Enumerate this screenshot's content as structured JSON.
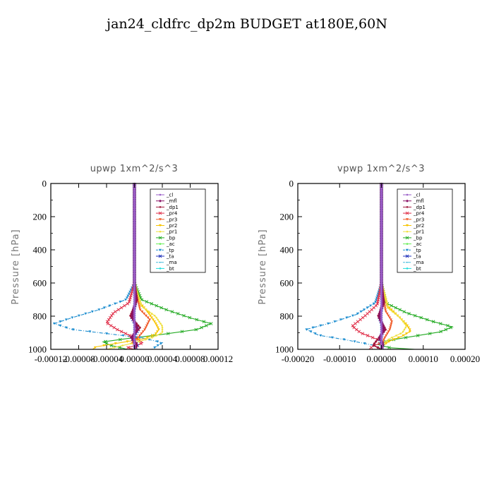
{
  "figure": {
    "title": "jan24_cldfrc_dp2m  BUDGET at180E,60N"
  },
  "colors": {
    "_cl": "#9a5fc8",
    "_mfl": "#8a1466",
    "_dp1": "#a0183c",
    "_pr4": "#e0304a",
    "_pr3": "#f05a28",
    "_pr2": "#f8c400",
    "_pr1": "#f0e040",
    "_bp": "#22aa22",
    "_ac": "#66ee55",
    "_tp": "#1e8ed0",
    "_ta": "#2233bb",
    "_ma": "#44bbdd",
    "_bt": "#22dddd"
  },
  "chart_data": [
    {
      "type": "line",
      "title": "upwp   1xm^2/s^3",
      "ylabel": "Pressure [hPa]",
      "xlabel": "",
      "xlim": [
        -0.00012,
        0.00012
      ],
      "ylim": [
        1000,
        0
      ],
      "xtick_labels": [
        "-0.00012",
        "-0.00008",
        "-0.00004",
        "0.00000",
        "0.00004",
        "0.00008",
        "0.00012"
      ],
      "xtick_values": [
        -0.00012,
        -8e-05,
        -4e-05,
        0.0,
        4e-05,
        8e-05,
        0.00012
      ],
      "ytick_values": [
        0,
        200,
        400,
        600,
        800,
        1000
      ],
      "ytick_labels": [
        "0",
        "200",
        "400",
        "600",
        "800",
        "1000"
      ],
      "legend": [
        "_cl",
        "_mfl",
        "_dp1",
        "_pr4",
        "_pr3",
        "_pr2",
        "_pr1",
        "_bp",
        "_ac",
        "_tp",
        "_ta",
        "_ma",
        "_bt"
      ],
      "legend_position": "top-right",
      "series": [
        {
          "name": "_cl",
          "x": [
            0,
            0,
            0,
            0,
            0,
            0,
            0,
            0
          ],
          "y": [
            0,
            300,
            600,
            700,
            800,
            900,
            950,
            1000
          ]
        },
        {
          "name": "_mfl",
          "x": [
            0,
            0,
            0,
            2e-06,
            -3e-06,
            4e-06,
            -4e-06,
            3e-06,
            0
          ],
          "y": [
            0,
            300,
            600,
            700,
            800,
            880,
            930,
            970,
            1000
          ]
        },
        {
          "name": "_dp1",
          "x": [
            0,
            0,
            0,
            4e-06,
            -6e-06,
            8e-06,
            -5e-06,
            4e-06,
            0
          ],
          "y": [
            0,
            300,
            600,
            700,
            800,
            870,
            930,
            970,
            1000
          ]
        },
        {
          "name": "_pr4",
          "x": [
            0,
            0,
            -8e-06,
            -3e-05,
            -4e-05,
            -2.5e-05,
            -5e-06,
            5e-06,
            1.2e-05,
            4e-06,
            -1e-05,
            0
          ],
          "y": [
            0,
            600,
            720,
            780,
            840,
            880,
            920,
            940,
            960,
            975,
            990,
            1000
          ]
        },
        {
          "name": "_pr3",
          "x": [
            0,
            0,
            8e-06,
            2.2e-05,
            1.5e-05,
            5e-06,
            -4e-06,
            4e-06,
            0
          ],
          "y": [
            0,
            600,
            760,
            820,
            880,
            930,
            960,
            985,
            1000
          ]
        },
        {
          "name": "_pr2",
          "x": [
            0,
            0,
            8e-06,
            2e-05,
            3e-05,
            3.5e-05,
            3e-05,
            1.5e-05,
            -2e-05,
            -5.5e-05,
            -6e-05
          ],
          "y": [
            0,
            600,
            720,
            780,
            840,
            880,
            910,
            935,
            960,
            985,
            1000
          ]
        },
        {
          "name": "_pr1",
          "x": [
            0,
            0,
            1e-05,
            3e-05,
            4e-05,
            4e-05,
            2.5e-05,
            5e-06,
            -2e-05,
            -4e-05
          ],
          "y": [
            0,
            600,
            740,
            800,
            860,
            900,
            930,
            955,
            980,
            1000
          ]
        },
        {
          "name": "_bp",
          "x": [
            0,
            0,
            1e-05,
            4.5e-05,
            8e-05,
            0.00011,
            9e-05,
            4e-05,
            -1e-05,
            -4.5e-05,
            -3.5e-05,
            -1e-05
          ],
          "y": [
            0,
            600,
            700,
            760,
            810,
            845,
            880,
            910,
            935,
            955,
            975,
            1000
          ]
        },
        {
          "name": "_ac",
          "x": [
            0,
            0,
            0,
            0,
            0,
            0
          ],
          "y": [
            0,
            400,
            700,
            850,
            950,
            1000
          ]
        },
        {
          "name": "_tp",
          "x": [
            0,
            0,
            -1.2e-05,
            -5e-05,
            -9e-05,
            -0.000115,
            -9e-05,
            -4e-05,
            1e-05,
            4e-05,
            2.5e-05
          ],
          "y": [
            0,
            600,
            700,
            760,
            810,
            845,
            880,
            905,
            930,
            960,
            1000
          ]
        },
        {
          "name": "_ta",
          "x": [
            0,
            0,
            2e-06,
            -4e-06,
            6e-06,
            -3e-06,
            5e-06,
            0
          ],
          "y": [
            0,
            600,
            720,
            810,
            880,
            940,
            975,
            1000
          ]
        },
        {
          "name": "_ma",
          "x": [
            0,
            0,
            0,
            0,
            0,
            0
          ],
          "y": [
            0,
            400,
            700,
            850,
            950,
            1000
          ]
        },
        {
          "name": "_bt",
          "x": [
            0,
            0,
            0,
            0,
            0,
            0
          ],
          "y": [
            0,
            400,
            700,
            850,
            950,
            1000
          ]
        }
      ]
    },
    {
      "type": "line",
      "title": "vpwp   1xm^2/s^3",
      "ylabel": "Pressure [hPa]",
      "xlabel": "",
      "xlim": [
        -0.0002,
        0.0002
      ],
      "ylim": [
        1000,
        0
      ],
      "xtick_labels": [
        "-0.00020",
        "-0.00010",
        "0.00000",
        "0.00010",
        "0.00020"
      ],
      "xtick_values": [
        -0.0002,
        -0.0001,
        0.0,
        0.0001,
        0.0002
      ],
      "ytick_values": [
        0,
        200,
        400,
        600,
        800,
        1000
      ],
      "ytick_labels": [
        "0",
        "200",
        "400",
        "600",
        "800",
        "1000"
      ],
      "legend": [
        "_cl",
        "_mfl",
        "_dp1",
        "_pr4",
        "_pr3",
        "_pr2",
        "_pr1",
        "_bp",
        "_ac",
        "_tp",
        "_ta",
        "_ma",
        "_bt"
      ],
      "legend_position": "top-right",
      "series": [
        {
          "name": "_cl",
          "x": [
            0,
            0,
            0,
            0,
            0,
            0,
            0,
            0
          ],
          "y": [
            0,
            300,
            600,
            700,
            800,
            900,
            950,
            1000
          ]
        },
        {
          "name": "_mfl",
          "x": [
            0,
            0,
            0,
            3e-06,
            -5e-06,
            6e-06,
            -4e-06,
            3e-06,
            0
          ],
          "y": [
            0,
            300,
            600,
            720,
            800,
            880,
            930,
            970,
            1000
          ]
        },
        {
          "name": "_dp1",
          "x": [
            0,
            0,
            0,
            6e-06,
            -8e-06,
            1e-05,
            -6e-06,
            -2e-05,
            0
          ],
          "y": [
            0,
            300,
            600,
            720,
            800,
            880,
            930,
            975,
            1000
          ]
        },
        {
          "name": "_pr4",
          "x": [
            0,
            0,
            -1e-05,
            -4e-05,
            -7e-05,
            -5e-05,
            -2e-05,
            5e-06,
            -2e-05,
            -3e-05
          ],
          "y": [
            0,
            600,
            730,
            800,
            860,
            900,
            930,
            955,
            980,
            1000
          ]
        },
        {
          "name": "_pr3",
          "x": [
            0,
            0,
            1e-05,
            2.5e-05,
            2e-05,
            8e-06,
            0,
            0
          ],
          "y": [
            0,
            600,
            770,
            830,
            880,
            930,
            970,
            1000
          ]
        },
        {
          "name": "_pr2",
          "x": [
            0,
            0,
            1.5e-05,
            4e-05,
            6e-05,
            7e-05,
            5e-05,
            2e-05,
            5e-06,
            0
          ],
          "y": [
            0,
            600,
            740,
            800,
            850,
            890,
            920,
            950,
            975,
            1000
          ]
        },
        {
          "name": "_pr1",
          "x": [
            0,
            0,
            1.5e-05,
            4.5e-05,
            6e-05,
            5e-05,
            2e-05,
            5e-06,
            0
          ],
          "y": [
            0,
            600,
            750,
            810,
            860,
            900,
            935,
            965,
            1000
          ]
        },
        {
          "name": "_bp",
          "x": [
            0,
            0,
            1e-05,
            6e-05,
            0.00012,
            0.00017,
            0.00014,
            8e-05,
            2e-05,
            -1e-05,
            2e-05,
            8e-05
          ],
          "y": [
            0,
            600,
            720,
            780,
            830,
            865,
            895,
            920,
            945,
            970,
            990,
            1000
          ]
        },
        {
          "name": "_ac",
          "x": [
            0,
            0,
            0,
            0,
            0,
            0
          ],
          "y": [
            0,
            400,
            700,
            850,
            950,
            1000
          ]
        },
        {
          "name": "_tp",
          "x": [
            0,
            0,
            -1.5e-05,
            -6e-05,
            -0.00012,
            -0.00018,
            -0.00015,
            -8e-05,
            -2e-05,
            0
          ],
          "y": [
            0,
            600,
            720,
            790,
            840,
            880,
            915,
            945,
            975,
            1000
          ]
        },
        {
          "name": "_ta",
          "x": [
            0,
            0,
            4e-06,
            -5e-06,
            6e-06,
            -4e-06,
            4e-06,
            0
          ],
          "y": [
            0,
            600,
            720,
            810,
            880,
            940,
            975,
            1000
          ]
        },
        {
          "name": "_ma",
          "x": [
            0,
            0,
            0,
            0,
            0,
            0
          ],
          "y": [
            0,
            400,
            700,
            850,
            950,
            1000
          ]
        },
        {
          "name": "_bt",
          "x": [
            0,
            0,
            0,
            0,
            0,
            0
          ],
          "y": [
            0,
            400,
            700,
            850,
            950,
            1000
          ]
        }
      ]
    }
  ]
}
